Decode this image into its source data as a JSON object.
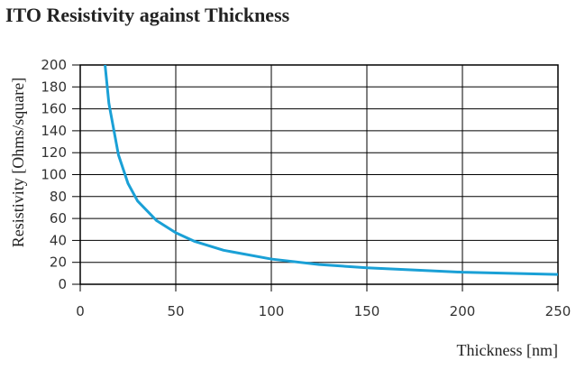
{
  "chart_data": {
    "type": "line",
    "title": "ITO Resistivity against Thickness",
    "x_label": "Thickness [nm]",
    "y_label": "Resistivity [Ohms/square]",
    "x": [
      13,
      15,
      20,
      25,
      30,
      40,
      50,
      60,
      75,
      100,
      125,
      150,
      200,
      250
    ],
    "series": [
      {
        "name": "Resistivity",
        "color": "#1aa0d6",
        "values": [
          200,
          165,
          118,
          92,
          76,
          58,
          47,
          39,
          31,
          23,
          18,
          15,
          11,
          9
        ]
      }
    ],
    "xlim": [
      0,
      250
    ],
    "xticks": [
      0,
      50,
      100,
      150,
      200,
      250
    ],
    "ylim": [
      0,
      200
    ],
    "yticks": [
      0,
      20,
      40,
      60,
      80,
      100,
      120,
      140,
      160,
      180,
      200
    ],
    "grid": true
  }
}
